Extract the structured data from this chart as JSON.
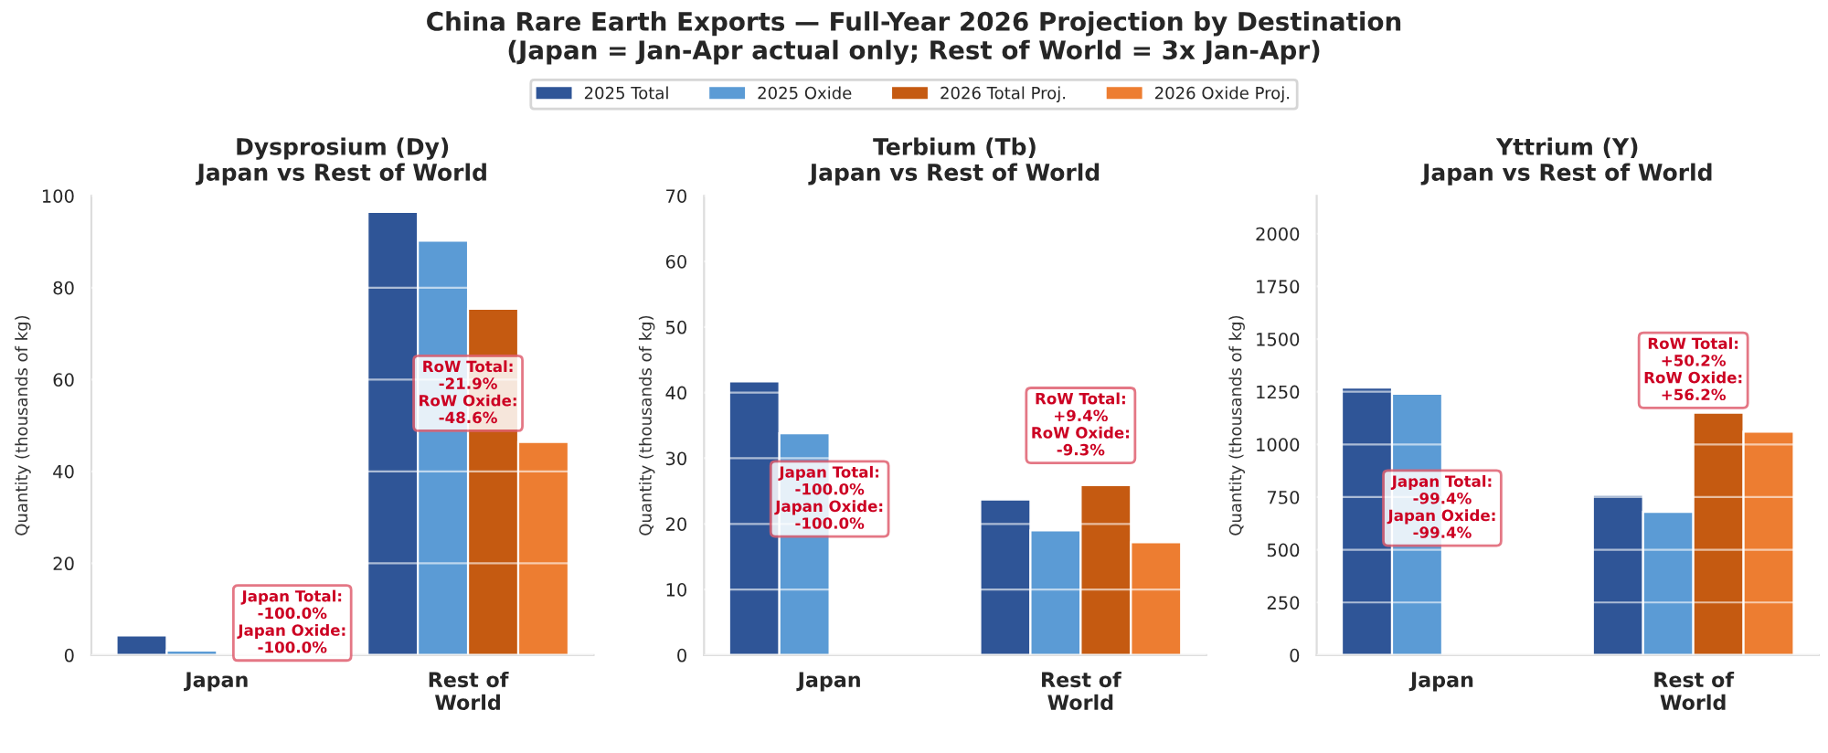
{
  "chart_data": [
    {
      "type": "bar",
      "title": "Dysprosium (Dy)\nJapan vs Rest of World",
      "ylabel": "Quantity (thousands of kg)",
      "categories": [
        "Japan",
        "Rest of\nWorld"
      ],
      "series": [
        {
          "name": "2025 Total",
          "color": "#2f5597",
          "values": [
            4.3,
            96.5
          ]
        },
        {
          "name": "2025 Oxide",
          "color": "#5b9bd5",
          "values": [
            1.0,
            90.2
          ]
        },
        {
          "name": "2026 Total Proj.",
          "color": "#c55a11",
          "values": [
            null,
            75.4
          ]
        },
        {
          "name": "2026 Oxide Proj.",
          "color": "#ed7d31",
          "values": [
            null,
            46.4
          ]
        }
      ],
      "ylim": [
        0,
        100
      ],
      "yticks": [
        0,
        20,
        40,
        60,
        80,
        100
      ],
      "grid": "y",
      "legend": "top",
      "annotations": [
        "China Rare Earth Exports — Full-Year 2026 Projection by Destination\n(Japan = Jan-Apr actual only; Rest of World = 3x Jan-Apr)",
        "Japan Total:\n-100.0%\nJapan Oxide:\n-100.0%",
        "RoW Total:\n-21.9%\nRoW Oxide:\n-48.6%"
      ]
    },
    {
      "type": "bar",
      "title": "Terbium (Tb)\nJapan vs Rest of World",
      "ylabel": "Quantity (thousands of kg)",
      "categories": [
        "Japan",
        "Rest of\nWorld"
      ],
      "series": [
        {
          "color": "#2f5597",
          "values": [
            41.7,
            23.7
          ]
        },
        {
          "color": "#5b9bd5",
          "values": [
            33.8,
            19.0
          ]
        },
        {
          "color": "#c55a11",
          "values": [
            null,
            25.9
          ]
        },
        {
          "color": "#ed7d31",
          "values": [
            null,
            17.2
          ]
        }
      ],
      "ylim": [
        0,
        70
      ],
      "yticks": [
        0,
        10,
        20,
        30,
        40,
        50,
        60,
        70
      ],
      "grid": "y",
      "annotations": [
        "Japan Total:\n-100.0%\nJapan Oxide:\n-100.0%",
        "RoW Total:\n+9.4%\nRoW Oxide:\n-9.3%"
      ]
    },
    {
      "type": "bar",
      "title": "Yttrium (Y)\nJapan vs Rest of World",
      "ylabel": "Quantity (thousands of kg)",
      "categories": [
        "Japan",
        "Rest of\nWorld"
      ],
      "series": [
        {
          "color": "#2f5597",
          "values": [
            1270,
            760
          ]
        },
        {
          "color": "#5b9bd5",
          "values": [
            1240,
            680
          ]
        },
        {
          "color": "#c55a11",
          "values": [
            null,
            1150
          ]
        },
        {
          "color": "#ed7d31",
          "values": [
            null,
            1060
          ]
        }
      ],
      "ylim": [
        0,
        2180
      ],
      "yticks": [
        0,
        250,
        500,
        750,
        1000,
        1250,
        1500,
        1750,
        2000
      ],
      "grid": "y",
      "annotations": [
        "Japan Total:\n-99.4%\nJapan Oxide:\n-99.4%",
        "RoW Total:\n+50.2%\nRoW Oxide:\n+56.2%"
      ]
    }
  ]
}
